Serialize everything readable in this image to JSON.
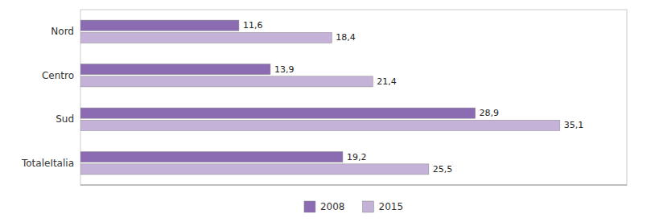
{
  "chart_data": {
    "type": "bar",
    "orientation": "horizontal",
    "categories": [
      "TotaleItalia",
      "Sud",
      "Centro",
      "Nord"
    ],
    "series": [
      {
        "name": "2008",
        "color": "#8B6BB1",
        "values": [
          19.2,
          28.9,
          13.9,
          11.6
        ],
        "value_labels": [
          "19,2",
          "28,9",
          "13,9",
          "11,6"
        ]
      },
      {
        "name": "2015",
        "color": "#C4B2D9",
        "values": [
          25.5,
          35.1,
          21.4,
          18.4
        ],
        "value_labels": [
          "25,5",
          "35,1",
          "21,4",
          "18,4"
        ]
      }
    ],
    "xlim": [
      0,
      40
    ],
    "grid": false,
    "legend": "bottom",
    "data_labels": true,
    "tick_labels": "y"
  }
}
